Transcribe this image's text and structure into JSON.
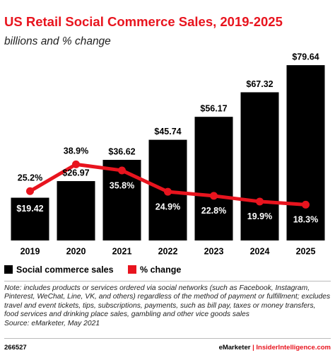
{
  "chart_data": {
    "type": "bar-line",
    "title": "US Retail Social Commerce Sales, 2019-2025",
    "subtitle": "billions and % change",
    "categories": [
      "2019",
      "2020",
      "2021",
      "2022",
      "2023",
      "2024",
      "2025"
    ],
    "series": [
      {
        "name": "Social commerce sales",
        "type": "bar",
        "color": "#000000",
        "values": [
          19.42,
          26.97,
          36.62,
          45.74,
          56.17,
          67.32,
          79.64
        ],
        "value_labels": [
          "$19.42",
          "$26.97",
          "$36.62",
          "$45.74",
          "$56.17",
          "$67.32",
          "$79.64"
        ]
      },
      {
        "name": "% change",
        "type": "line",
        "axis": "y2",
        "color": "#e8141e",
        "values": [
          25.2,
          38.9,
          35.8,
          24.9,
          22.8,
          19.9,
          18.3
        ],
        "value_labels": [
          "25.2%",
          "38.9%",
          "35.8%",
          "24.9%",
          "22.8%",
          "19.9%",
          "18.3%"
        ]
      }
    ],
    "ylim": [
      0,
      80
    ],
    "y2lim": [
      0,
      90
    ],
    "note": "Note: includes products or services ordered via social networks (such as Facebook, Instagram, Pinterest, WeChat, Line, VK, and others) regardless of the method of payment or fulfillment; excludes travel and event tickets, tips, subscriptions, payments, such as bill pay, taxes or money transfers, food services and drinking place sales, gambling and other vice goods sales",
    "source": "Source: eMarketer, May 2021",
    "chart_id": "266527",
    "brand": "eMarketer",
    "site": "InsiderIntelligence.com"
  }
}
